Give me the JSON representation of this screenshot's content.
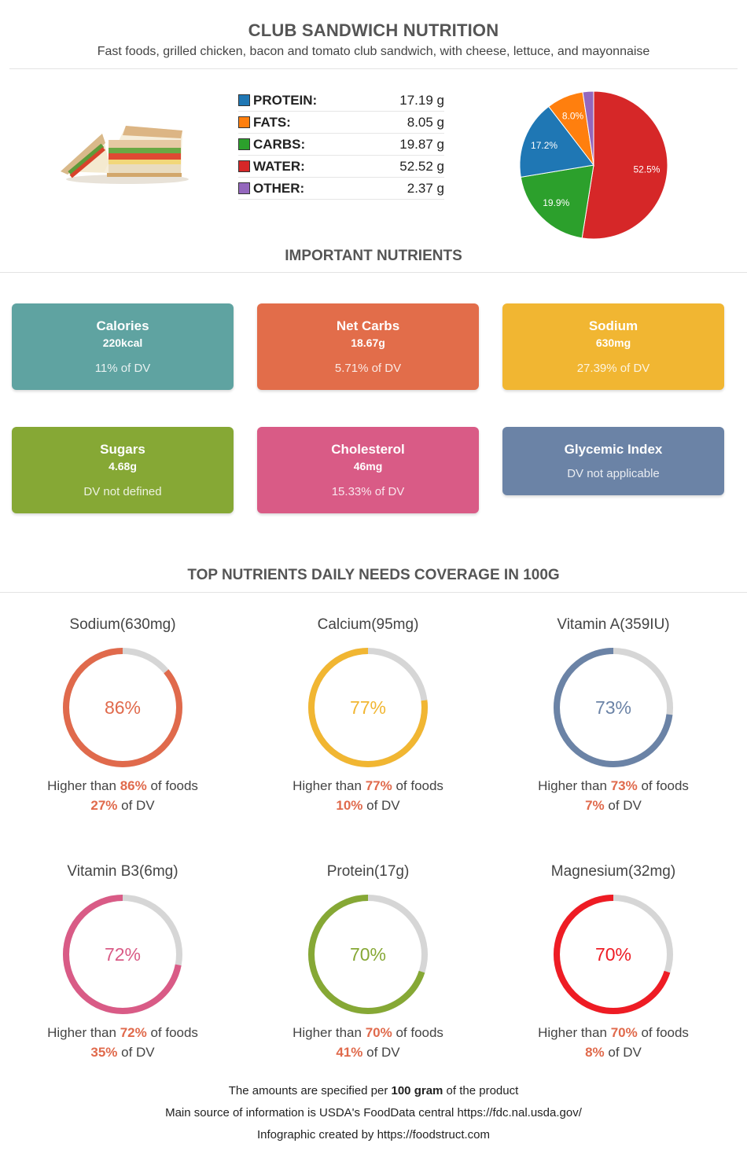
{
  "header": {
    "title": "CLUB SANDWICH NUTRITION",
    "subtitle": "Fast foods, grilled chicken, bacon and tomato club sandwich, with cheese, lettuce, and mayonnaise"
  },
  "image": {
    "icon": "club-sandwich"
  },
  "macros": [
    {
      "label": "PROTEIN:",
      "value": "17.19 g",
      "color": "#1f77b4"
    },
    {
      "label": "FATS:",
      "value": "8.05 g",
      "color": "#ff7f0e"
    },
    {
      "label": "CARBS:",
      "value": "19.87 g",
      "color": "#2ca02c"
    },
    {
      "label": "WATER:",
      "value": "52.52 g",
      "color": "#d62728"
    },
    {
      "label": "OTHER:",
      "value": "2.37 g",
      "color": "#9467bd"
    }
  ],
  "chart_data": {
    "type": "pie",
    "slices": [
      {
        "label": "52.5%",
        "value": 52.52,
        "color": "#d62728"
      },
      {
        "label": "19.9%",
        "value": 19.87,
        "color": "#2ca02c"
      },
      {
        "label": "17.2%",
        "value": 17.19,
        "color": "#1f77b4"
      },
      {
        "label": "8.0%",
        "value": 8.05,
        "color": "#ff7f0e"
      },
      {
        "label": "",
        "value": 2.37,
        "color": "#9467bd"
      }
    ]
  },
  "important": {
    "title": "IMPORTANT NUTRIENTS",
    "cards": [
      {
        "name": "Calories",
        "amount": "220kcal",
        "dv": "11% of DV",
        "color": "#5fa3a1"
      },
      {
        "name": "Net Carbs",
        "amount": "18.67g",
        "dv": "5.71% of DV",
        "color": "#e26d4a"
      },
      {
        "name": "Sodium",
        "amount": "630mg",
        "dv": "27.39% of DV",
        "color": "#f1b632"
      },
      {
        "name": "Sugars",
        "amount": "4.68g",
        "dv": "DV not defined",
        "color": "#86a835"
      },
      {
        "name": "Cholesterol",
        "amount": "46mg",
        "dv": "15.33% of DV",
        "color": "#d95b86"
      },
      {
        "name": "Glycemic Index",
        "amount": "",
        "dv": "DV not applicable",
        "color": "#6b83a6"
      }
    ]
  },
  "coverage": {
    "title": "TOP NUTRIENTS DAILY NEEDS COVERAGE IN 100G",
    "higher_prefix": "Higher than ",
    "higher_suffix": " of foods",
    "dv_suffix": " of DV",
    "items": [
      {
        "name": "Sodium(630mg)",
        "pct_label": "86%",
        "pct": 86,
        "dv": "27%",
        "color": "#e06a4c"
      },
      {
        "name": "Calcium(95mg)",
        "pct_label": "77%",
        "pct": 77,
        "dv": "10%",
        "color": "#f1b632"
      },
      {
        "name": "Vitamin A(359IU)",
        "pct_label": "73%",
        "pct": 73,
        "dv": "7%",
        "color": "#6b83a6"
      },
      {
        "name": "Vitamin B3(6mg)",
        "pct_label": "72%",
        "pct": 72,
        "dv": "35%",
        "color": "#d95b86"
      },
      {
        "name": "Protein(17g)",
        "pct_label": "70%",
        "pct": 70,
        "dv": "41%",
        "color": "#86a835"
      },
      {
        "name": "Magnesium(32mg)",
        "pct_label": "70%",
        "pct": 70,
        "dv": "8%",
        "color": "#ee1c24"
      }
    ]
  },
  "footer": {
    "line1_pre": "The amounts are specified per ",
    "line1_bold": "100 gram",
    "line1_post": " of the product",
    "line2": "Main source of information is USDA's FoodData central https://fdc.nal.usda.gov/",
    "line3": "Infographic created by https://foodstruct.com"
  }
}
